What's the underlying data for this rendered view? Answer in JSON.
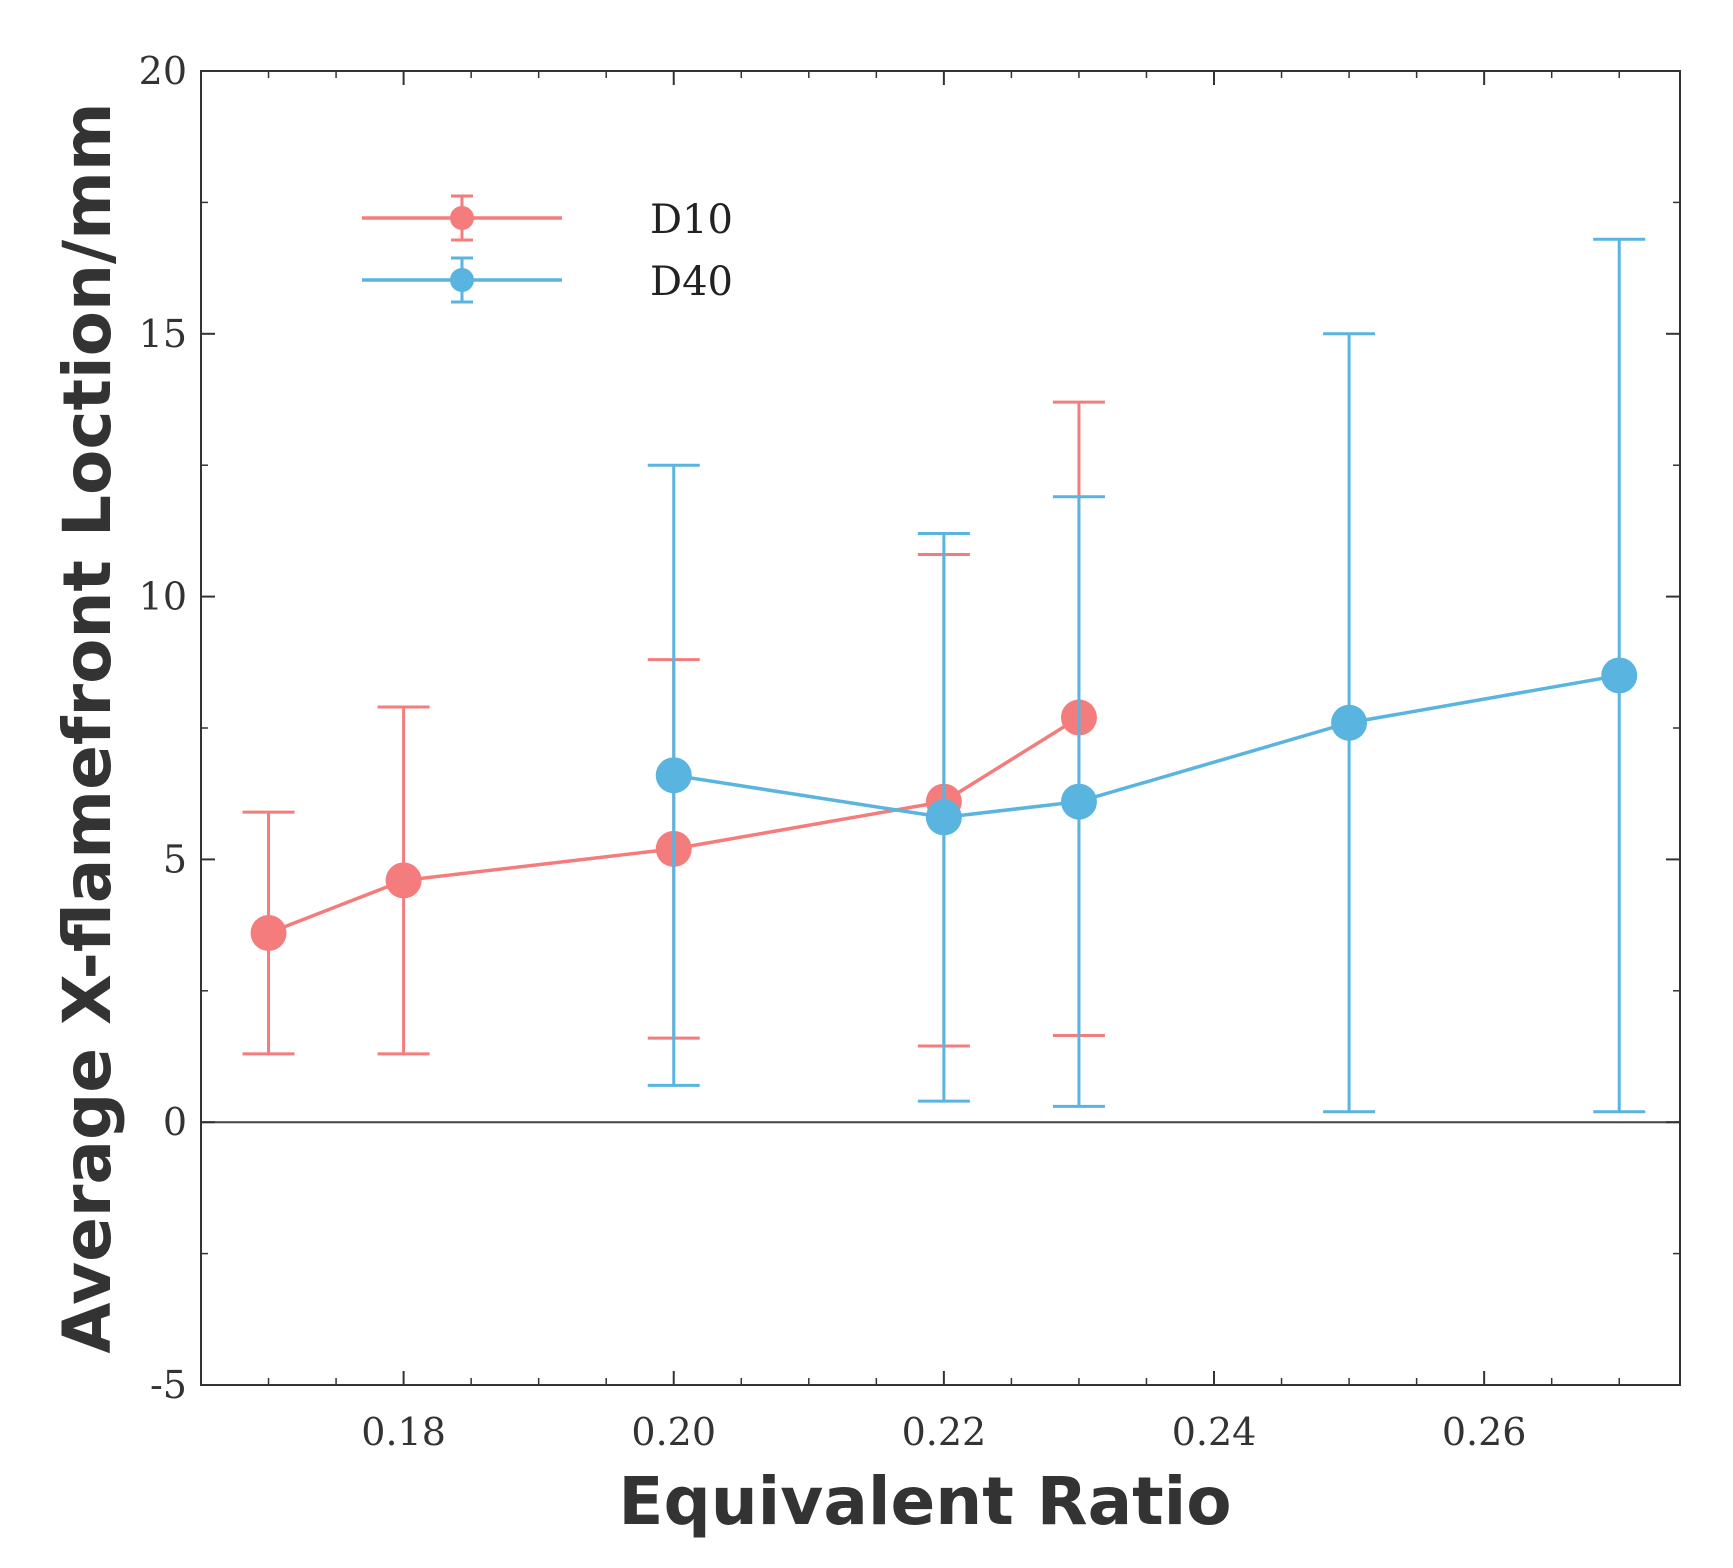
{
  "chart_data": {
    "type": "line",
    "title": "",
    "xlabel": "Equivalent Ratio",
    "ylabel": "Average X-flamefront Loction/mm",
    "xlim": [
      0.165,
      0.2745
    ],
    "ylim": [
      -5,
      20
    ],
    "x_ticks": [
      "0.18",
      "0.20",
      "0.22",
      "0.24",
      "0.26"
    ],
    "x_tick_values": [
      0.18,
      0.2,
      0.22,
      0.24,
      0.26
    ],
    "y_ticks": [
      "-5",
      "0",
      "5",
      "10",
      "15",
      "20"
    ],
    "y_tick_values": [
      -5,
      0,
      5,
      10,
      15,
      20
    ],
    "zero_line": true,
    "legend_position": "top-left",
    "series": [
      {
        "name": "D10",
        "color": "#f47c7c",
        "x": [
          0.17,
          0.18,
          0.2,
          0.22,
          0.23
        ],
        "y": [
          3.6,
          4.6,
          5.2,
          6.1,
          7.7
        ],
        "err_low": [
          1.3,
          1.3,
          1.6,
          1.45,
          1.65
        ],
        "err_high": [
          5.9,
          7.9,
          8.8,
          10.8,
          13.7
        ]
      },
      {
        "name": "D40",
        "color": "#5ab4e0",
        "x": [
          0.2,
          0.22,
          0.23,
          0.25,
          0.27
        ],
        "y": [
          6.6,
          5.8,
          6.1,
          7.6,
          8.5
        ],
        "err_low": [
          0.7,
          0.4,
          0.3,
          0.2,
          0.2
        ],
        "err_high": [
          12.5,
          11.2,
          11.9,
          15.0,
          16.8
        ]
      }
    ]
  }
}
